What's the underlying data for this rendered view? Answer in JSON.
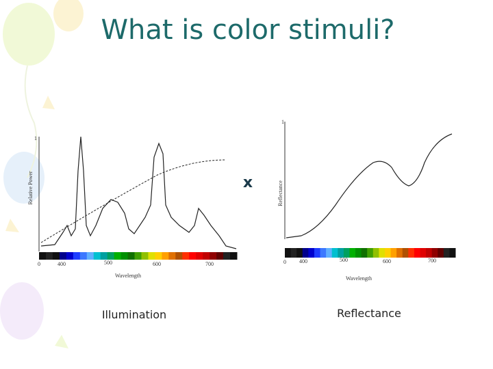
{
  "title": "What is color stimuli?",
  "operator": "x",
  "figures": [
    {
      "caption": "Illumination",
      "y_label": "Relative Power",
      "y_top": 1,
      "origin": 0,
      "x_ticks": [
        400,
        500,
        600,
        700
      ],
      "x_label": "Wavelength"
    },
    {
      "caption": "Reflectance",
      "y_label": "Reflectance",
      "y_top": 1,
      "origin": 0,
      "x_ticks": [
        400,
        500,
        600,
        700
      ],
      "x_label": "Wavelength"
    }
  ]
}
